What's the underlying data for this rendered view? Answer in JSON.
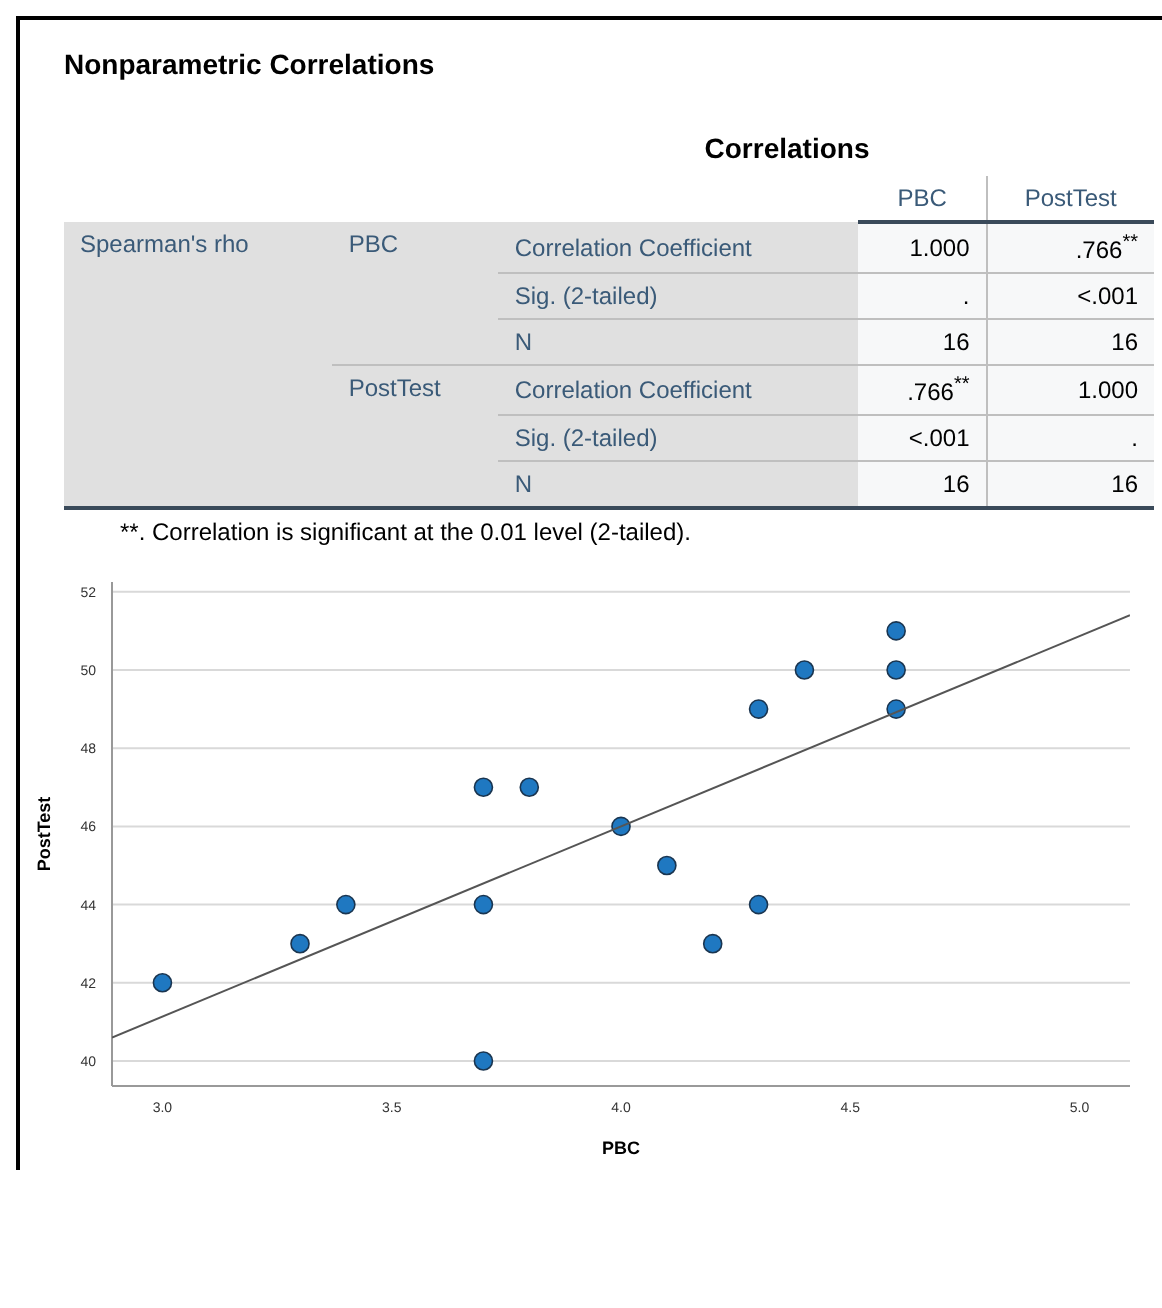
{
  "chart_data": [
    {
      "type": "other",
      "title": "Nonparametric Correlations",
      "subtitle": "Correlations",
      "annotations": [
        "PBC",
        "PostTest",
        "Spearman's rho",
        "PBC",
        "Correlation Coefficient",
        "1.000",
        ".766$^{**}$",
        "Sig. (2-tailed)",
        ".",
        "<.001",
        "N",
        "16",
        "16",
        "PostTest",
        "Correlation Coefficient",
        ".766$^{**}$",
        "1.000",
        "Sig. (2-tailed)",
        "<.001",
        ".",
        "N",
        "16",
        "16",
        "**. Correlation is significant at the 0.01 level (2-tailed)."
      ]
    },
    {
      "type": "scatter",
      "xlabel": "PBC",
      "ylabel": "PostTest",
      "xlim": [
        2.89,
        5.11
      ],
      "ylim": [
        39.36,
        52.25
      ],
      "xticks": [
        {
          "value": 3,
          "label": "3.0"
        },
        {
          "value": 3.5,
          "label": "3.5"
        },
        {
          "value": 4,
          "label": "4.0"
        },
        {
          "value": 4.5,
          "label": "4.5"
        },
        {
          "value": 5,
          "label": "5.0"
        }
      ],
      "yticks": [
        40,
        42,
        44,
        46,
        48,
        50,
        52
      ],
      "grid": "y",
      "series": [
        {
          "type": "scatter",
          "marker": "circle",
          "color": "#1f78c1",
          "x": [
            3.0,
            3.3,
            3.4,
            3.7,
            3.7,
            3.7,
            3.8,
            4.0,
            4.1,
            4.2,
            4.3,
            4.3,
            4.4,
            4.6,
            4.6,
            4.6
          ],
          "values": [
            42,
            43,
            44,
            47,
            44,
            40,
            47,
            46,
            45,
            43,
            49,
            44,
            50,
            51,
            50,
            49
          ]
        },
        {
          "type": "line",
          "color": "#555555",
          "x": [
            2.89,
            5.11
          ],
          "values": [
            40.6,
            51.4
          ]
        }
      ]
    }
  ]
}
